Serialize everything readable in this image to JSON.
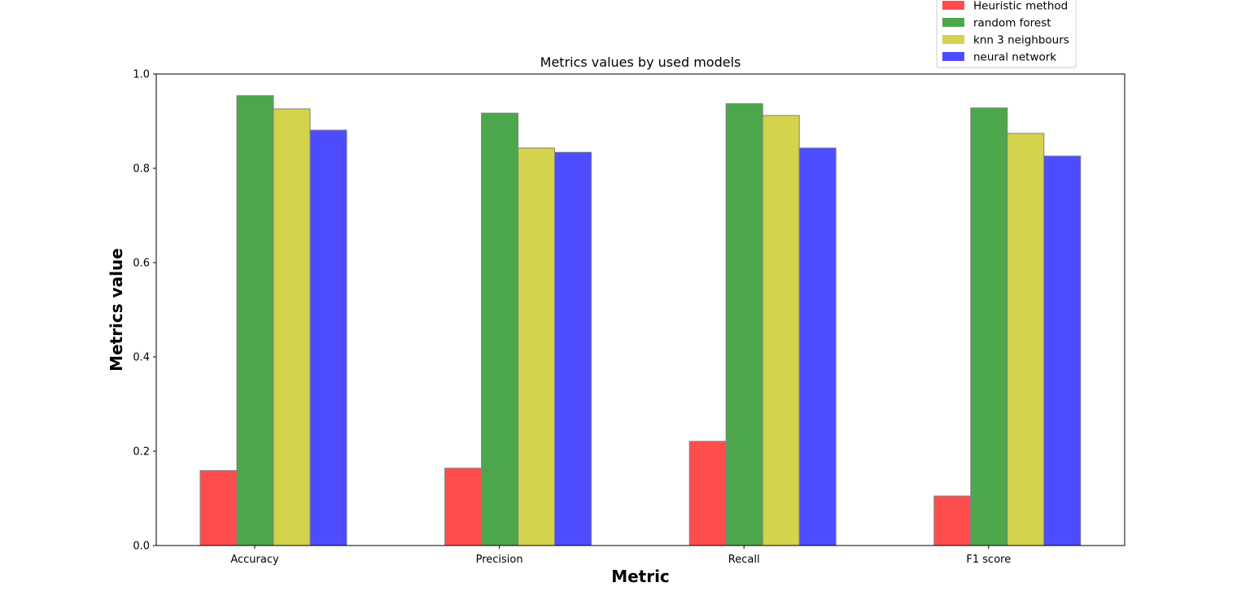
{
  "chart_data": {
    "type": "bar",
    "title": "Metrics values by used models",
    "xlabel": "Metric",
    "ylabel": "Metrics value",
    "ylim": [
      0,
      1.0
    ],
    "yticks": [
      0.0,
      0.2,
      0.4,
      0.6,
      0.8,
      1.0
    ],
    "ytick_labels": [
      "0.0",
      "0.2",
      "0.4",
      "0.6",
      "0.8",
      "1.0"
    ],
    "categories": [
      "Accuracy",
      "Precision",
      "Recall",
      "F1 score"
    ],
    "grid": false,
    "legend_position": "top-right",
    "series": [
      {
        "name": "Heuristic method",
        "color": "#ff4d4d",
        "values": [
          0.159,
          0.164,
          0.221,
          0.105
        ]
      },
      {
        "name": "random forest",
        "color": "#4ca64c",
        "values": [
          0.954,
          0.917,
          0.937,
          0.928
        ]
      },
      {
        "name": "knn 3 neighbours",
        "color": "#d3d34d",
        "values": [
          0.926,
          0.843,
          0.912,
          0.874
        ]
      },
      {
        "name": "neural network",
        "color": "#4d4dff",
        "values": [
          0.881,
          0.834,
          0.843,
          0.826
        ]
      }
    ],
    "bar_edge_color": "#808080"
  }
}
